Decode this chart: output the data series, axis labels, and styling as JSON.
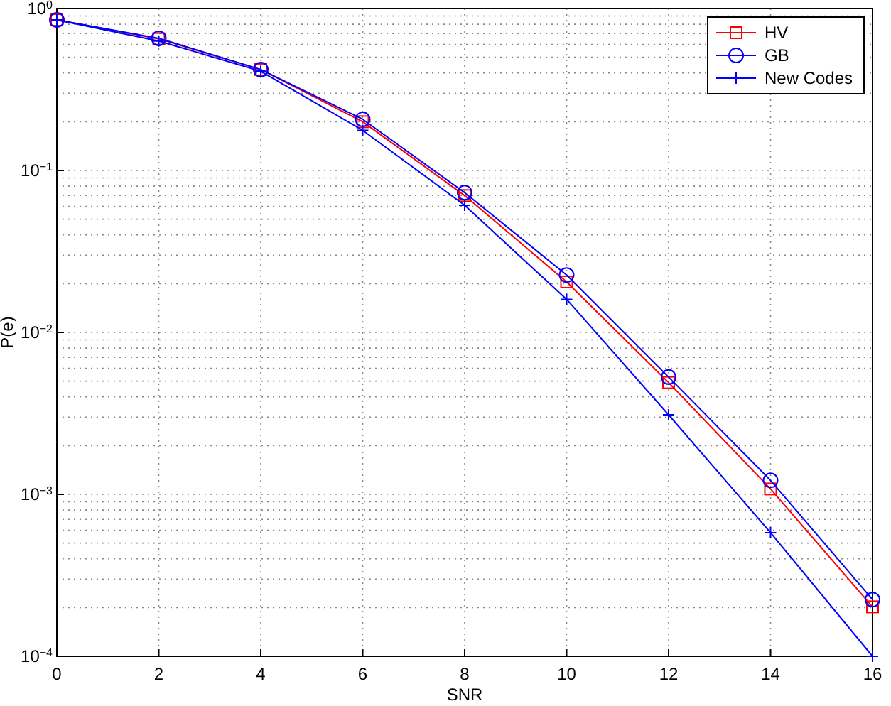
{
  "chart_data": {
    "type": "line",
    "xlabel": "SNR",
    "ylabel": "P(e)",
    "log": "y",
    "grid": true,
    "legend": "top right",
    "xlim": [
      0,
      16
    ],
    "xticks": [
      0,
      2,
      4,
      6,
      8,
      10,
      12,
      14,
      16
    ],
    "ylim": [
      0.0001,
      1
    ],
    "yticks": [
      {
        "value": 0.0001,
        "label": "10$^{−4}$"
      },
      {
        "value": 0.001,
        "label": "10$^{−3}$"
      },
      {
        "value": 0.01,
        "label": "10$^{−2}$"
      },
      {
        "value": 0.1,
        "label": "10$^{−1}$"
      },
      {
        "value": 1,
        "label": "10$^{0}$"
      }
    ],
    "x": [
      0,
      2,
      4,
      6,
      8,
      10,
      12,
      14,
      16
    ],
    "series": [
      {
        "name": "HV",
        "color": "#ff0000",
        "marker": "square",
        "values": [
          0.85,
          0.65,
          0.42,
          0.2,
          0.07,
          0.0205,
          0.0049,
          0.00108,
          0.000202
        ]
      },
      {
        "name": "GB",
        "color": "#0000ff",
        "marker": "circle",
        "values": [
          0.85,
          0.655,
          0.42,
          0.207,
          0.073,
          0.0226,
          0.0053,
          0.00122,
          0.000224
        ]
      },
      {
        "name": "New Codes",
        "color": "#0000ff",
        "marker": "cross",
        "values": [
          0.85,
          0.63,
          0.41,
          0.177,
          0.061,
          0.016,
          0.0031,
          0.00058,
          0.0001
        ]
      }
    ]
  }
}
